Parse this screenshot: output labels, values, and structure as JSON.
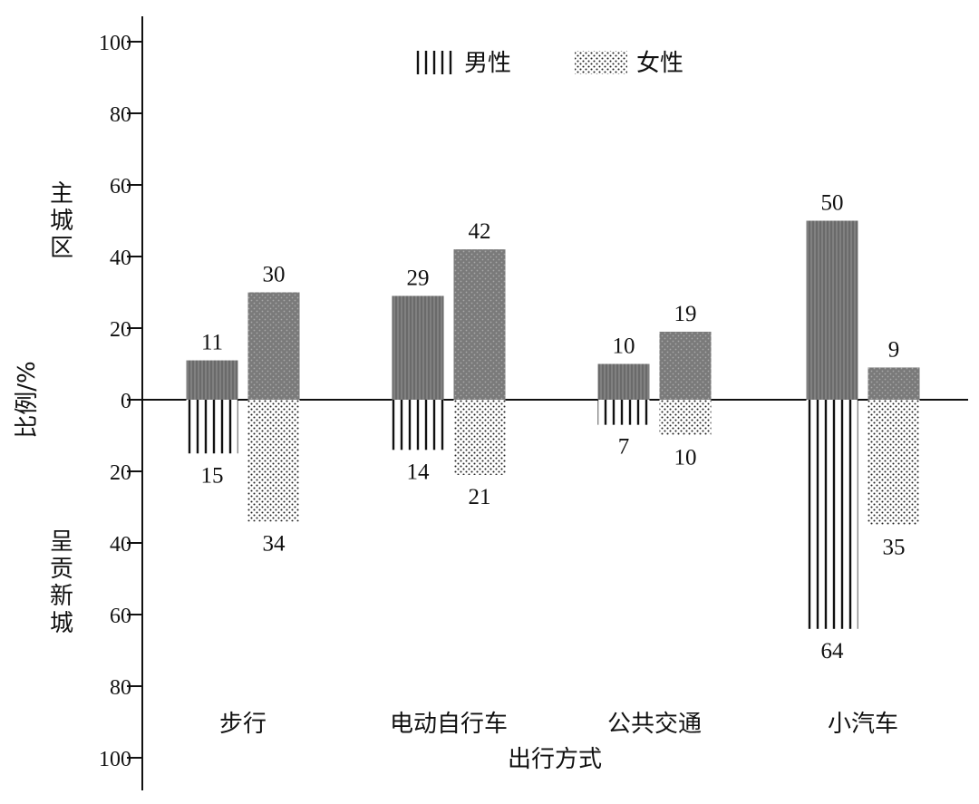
{
  "chart_data": {
    "type": "bar",
    "categories": [
      "步行",
      "电动自行车",
      "公共交通",
      "小汽车"
    ],
    "xlabel": "出行方式",
    "ylabel": "比例/%",
    "upper_region_label": "主城区",
    "lower_region_label": "呈贡新城",
    "y_ticks_upper": [
      "0",
      "20",
      "40",
      "60",
      "80",
      "100"
    ],
    "y_ticks_lower": [
      "20",
      "40",
      "60",
      "80",
      "100"
    ],
    "ylim": [
      -100,
      100
    ],
    "legend": {
      "position": "top",
      "entries": [
        {
          "name": "男性",
          "pattern": "vertical-lines"
        },
        {
          "name": "女性",
          "pattern": "dots"
        }
      ]
    },
    "series": [
      {
        "name": "男性",
        "region": "主城区",
        "values": [
          11,
          29,
          10,
          50
        ]
      },
      {
        "name": "女性",
        "region": "主城区",
        "values": [
          30,
          42,
          19,
          9
        ]
      },
      {
        "name": "男性",
        "region": "呈贡新城",
        "values": [
          15,
          14,
          7,
          64
        ]
      },
      {
        "name": "女性",
        "region": "呈贡新城",
        "values": [
          34,
          21,
          10,
          35
        ]
      }
    ],
    "colors": {
      "upper_fill": "#7a7a7a",
      "ink": "#111111"
    }
  }
}
